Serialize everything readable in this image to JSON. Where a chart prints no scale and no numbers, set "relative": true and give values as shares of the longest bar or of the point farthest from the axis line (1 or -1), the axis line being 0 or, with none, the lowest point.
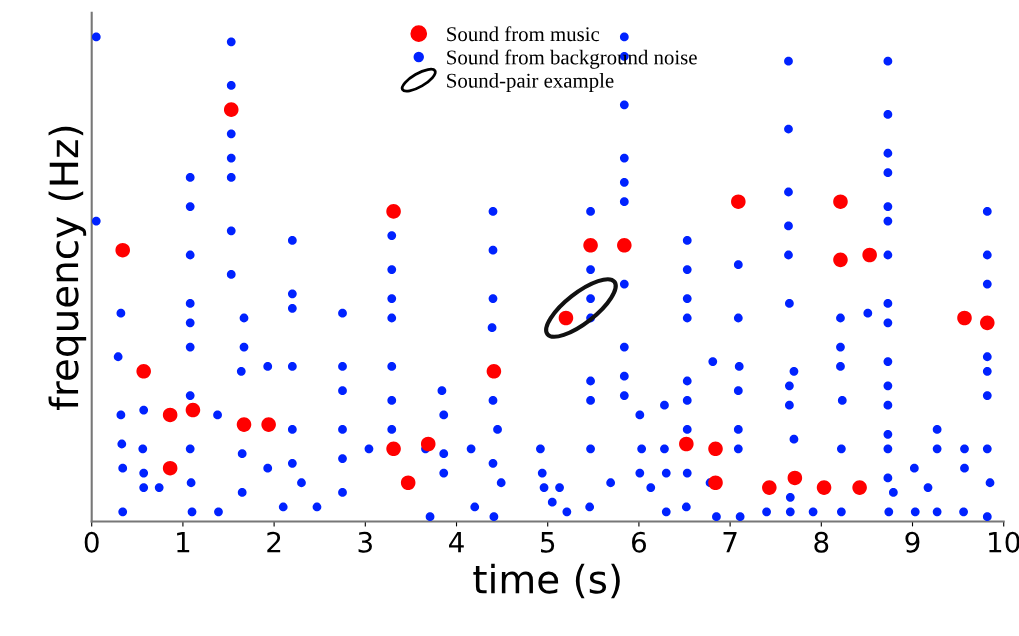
{
  "chart_data": {
    "type": "scatter",
    "xlabel": "time (s)",
    "ylabel": "frequency (Hz)",
    "relative": true,
    "xlim": [
      0,
      10
    ],
    "xticks": [
      0,
      1,
      2,
      3,
      4,
      5,
      6,
      7,
      8,
      9,
      10
    ],
    "grid": false,
    "legend": "top",
    "marker": "circle",
    "series": [
      {
        "name": "Sound from music",
        "color": "#ff0000",
        "x": [
          0.34,
          0.57,
          0.86,
          0.86,
          1.11,
          1.53,
          1.67,
          1.94,
          3.31,
          3.31,
          3.47,
          3.69,
          4.41,
          5.2,
          5.47,
          5.84,
          6.52,
          6.84,
          6.84,
          7.09,
          7.43,
          7.71,
          8.03,
          8.21,
          8.21,
          8.42,
          8.53,
          9.57,
          9.82
        ],
        "values": [
          0.56,
          0.31,
          0.22,
          0.11,
          0.23,
          0.85,
          0.2,
          0.2,
          0.64,
          0.15,
          0.08,
          0.16,
          0.31,
          0.42,
          0.57,
          0.57,
          0.16,
          0.15,
          0.08,
          0.66,
          0.07,
          0.09,
          0.07,
          0.66,
          0.54,
          0.07,
          0.55,
          0.42,
          0.41
        ]
      },
      {
        "name": "Sound from background noise",
        "color": "#0022ff",
        "x": [
          0.05,
          0.05,
          0.32,
          0.29,
          0.32,
          0.33,
          0.34,
          0.34,
          0.57,
          0.56,
          0.57,
          0.57,
          0.74,
          1.08,
          1.08,
          1.08,
          1.08,
          1.08,
          1.08,
          1.08,
          1.08,
          1.09,
          1.1,
          1.38,
          1.39,
          1.53,
          1.53,
          1.53,
          1.53,
          1.53,
          1.53,
          1.53,
          1.67,
          1.67,
          1.64,
          1.65,
          1.65,
          1.93,
          1.93,
          2.1,
          2.2,
          2.2,
          2.2,
          2.2,
          2.2,
          2.2,
          2.3,
          2.47,
          2.75,
          2.75,
          2.75,
          2.75,
          2.75,
          2.75,
          3.04,
          3.29,
          3.29,
          3.29,
          3.29,
          3.29,
          3.29,
          3.29,
          3.66,
          3.71,
          3.84,
          3.86,
          3.86,
          3.86,
          4.16,
          4.2,
          4.4,
          4.4,
          4.4,
          4.39,
          4.4,
          4.45,
          4.4,
          4.49,
          4.41,
          4.92,
          4.94,
          4.96,
          5.13,
          5.05,
          5.21,
          5.47,
          5.47,
          5.47,
          5.47,
          5.47,
          5.47,
          5.47,
          5.46,
          5.69,
          5.84,
          5.84,
          5.84,
          5.84,
          5.84,
          5.84,
          5.84,
          5.84,
          5.84,
          5.84,
          6.01,
          6.03,
          6.01,
          6.13,
          6.28,
          6.28,
          6.3,
          6.3,
          6.53,
          6.53,
          6.53,
          6.53,
          6.53,
          6.53,
          6.53,
          6.53,
          6.52,
          6.81,
          6.85,
          6.78,
          7.09,
          7.09,
          7.1,
          7.09,
          7.09,
          7.09,
          7.11,
          7.4,
          7.64,
          7.64,
          7.64,
          7.64,
          7.64,
          7.65,
          7.7,
          7.65,
          7.65,
          7.7,
          7.66,
          7.66,
          7.91,
          8.21,
          8.21,
          8.21,
          8.23,
          8.22,
          8.22,
          8.51,
          8.73,
          8.73,
          8.73,
          8.73,
          8.73,
          8.73,
          8.73,
          8.73,
          8.73,
          8.73,
          8.73,
          8.73,
          8.73,
          8.73,
          8.73,
          8.79,
          8.74,
          9.02,
          9.03,
          9.17,
          9.27,
          9.27,
          9.27,
          9.57,
          9.57,
          9.56,
          9.82,
          9.82,
          9.82,
          9.82,
          9.82,
          9.82,
          9.82,
          9.85,
          9.82
        ],
        "values": [
          1.0,
          0.62,
          0.43,
          0.34,
          0.22,
          0.16,
          0.11,
          0.02,
          0.23,
          0.15,
          0.1,
          0.07,
          0.07,
          0.71,
          0.65,
          0.55,
          0.45,
          0.41,
          0.36,
          0.26,
          0.15,
          0.08,
          0.02,
          0.22,
          0.02,
          0.99,
          0.9,
          0.8,
          0.75,
          0.71,
          0.6,
          0.51,
          0.42,
          0.36,
          0.31,
          0.14,
          0.06,
          0.32,
          0.11,
          0.03,
          0.58,
          0.47,
          0.44,
          0.32,
          0.19,
          0.12,
          0.08,
          0.03,
          0.43,
          0.32,
          0.27,
          0.19,
          0.13,
          0.06,
          0.15,
          0.59,
          0.52,
          0.46,
          0.42,
          0.32,
          0.25,
          0.19,
          0.15,
          0.01,
          0.27,
          0.22,
          0.14,
          0.1,
          0.15,
          0.03,
          0.64,
          0.56,
          0.46,
          0.4,
          0.25,
          0.19,
          0.12,
          0.08,
          0.01,
          0.15,
          0.1,
          0.07,
          0.07,
          0.04,
          0.02,
          0.64,
          0.52,
          0.46,
          0.42,
          0.29,
          0.25,
          0.15,
          0.03,
          0.08,
          1.0,
          0.96,
          0.86,
          0.75,
          0.7,
          0.66,
          0.49,
          0.36,
          0.3,
          0.26,
          0.22,
          0.15,
          0.1,
          0.07,
          0.24,
          0.15,
          0.1,
          0.02,
          0.58,
          0.52,
          0.46,
          0.42,
          0.29,
          0.25,
          0.19,
          0.1,
          0.03,
          0.33,
          0.01,
          0.08,
          0.53,
          0.42,
          0.32,
          0.27,
          0.19,
          0.15,
          0.01,
          0.02,
          0.95,
          0.81,
          0.68,
          0.61,
          0.55,
          0.45,
          0.31,
          0.28,
          0.24,
          0.17,
          0.05,
          0.02,
          0.02,
          0.42,
          0.36,
          0.32,
          0.25,
          0.15,
          0.02,
          0.43,
          0.95,
          0.84,
          0.76,
          0.72,
          0.65,
          0.62,
          0.55,
          0.45,
          0.41,
          0.33,
          0.28,
          0.24,
          0.18,
          0.15,
          0.09,
          0.06,
          0.02,
          0.11,
          0.02,
          0.07,
          0.19,
          0.15,
          0.02,
          0.15,
          0.11,
          0.02,
          0.64,
          0.55,
          0.49,
          0.34,
          0.31,
          0.26,
          0.15,
          0.08,
          0.01
        ]
      }
    ],
    "annotations": [
      "Sound-pair example"
    ]
  }
}
